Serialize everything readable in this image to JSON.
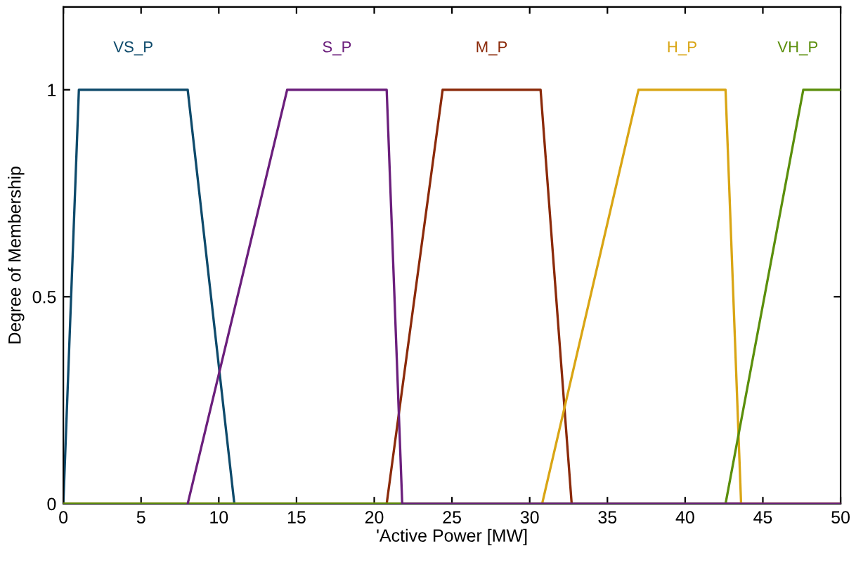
{
  "chart_data": {
    "type": "line",
    "xlabel": "'Active Power [MW]",
    "ylabel": "Degree of Membership",
    "xlim": [
      0,
      50
    ],
    "ylim": [
      0,
      1.2
    ],
    "xticks": [
      0,
      5,
      10,
      15,
      20,
      25,
      30,
      35,
      40,
      45,
      50
    ],
    "yticks": [
      0,
      0.5,
      1
    ],
    "grid": false,
    "legend": false,
    "marker": "none",
    "line_style": "solid",
    "series": [
      {
        "name": "VS_P",
        "color": "#0e4a6b",
        "x": [
          0,
          1,
          8,
          11,
          50
        ],
        "values": [
          0,
          1,
          1,
          0,
          0
        ]
      },
      {
        "name": "M_P",
        "color": "#8b2a0a",
        "x": [
          0,
          20.8,
          24.4,
          30.7,
          32.7,
          50
        ],
        "values": [
          0,
          0,
          1,
          1,
          0,
          0
        ]
      },
      {
        "name": "H_P",
        "color": "#d9a514",
        "x": [
          0,
          30.8,
          37,
          42.6,
          43.6,
          50
        ],
        "values": [
          0,
          0,
          1,
          1,
          0,
          0
        ]
      },
      {
        "name": "VH_P",
        "color": "#5b8f0c",
        "x": [
          0,
          42.6,
          47.6,
          50
        ],
        "values": [
          0,
          0,
          1,
          1
        ]
      },
      {
        "name": "S_P",
        "color": "#6b1f7c",
        "x": [
          8,
          14.4,
          20.8,
          21.8,
          50
        ],
        "values": [
          0,
          1,
          1,
          0,
          0
        ]
      }
    ]
  }
}
